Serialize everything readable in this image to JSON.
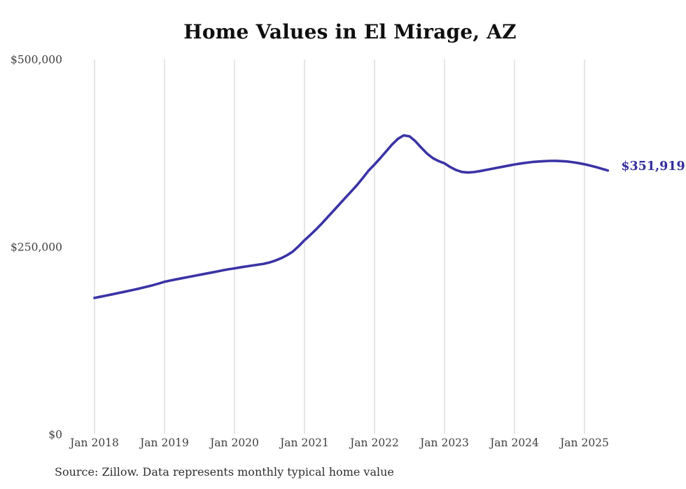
{
  "chart": {
    "title": "Home Values in El Mirage, AZ",
    "source_note": "Source: Zillow. Data represents monthly typical home value",
    "end_label": "$351,919",
    "colors": {
      "line": "#3a33a5",
      "end_label": "#332d9e",
      "grid": "#cccccc",
      "tick_text": "#404040",
      "title_text": "#0f0f0f"
    }
  },
  "chart_data": {
    "type": "line",
    "title": "Home Values in El Mirage, AZ",
    "xlabel": "",
    "ylabel": "",
    "ylim": [
      0,
      500000
    ],
    "grid": "vertical-only",
    "legend": "none",
    "y_ticks": [
      {
        "value": 0,
        "label": "$0"
      },
      {
        "value": 250000,
        "label": "$250,000"
      },
      {
        "value": 500000,
        "label": "$500,000"
      }
    ],
    "x_tick_labels": [
      "Jan 2018",
      "Jan 2019",
      "Jan 2020",
      "Jan 2021",
      "Jan 2022",
      "Jan 2023",
      "Jan 2024",
      "Jan 2025"
    ],
    "annotations": [
      {
        "text": "$351,919",
        "attached_to": "last-point"
      }
    ],
    "series": [
      {
        "name": "Monthly typical home value",
        "dates": [
          "2018-01",
          "2018-02",
          "2018-03",
          "2018-04",
          "2018-05",
          "2018-06",
          "2018-07",
          "2018-08",
          "2018-09",
          "2018-10",
          "2018-11",
          "2018-12",
          "2019-01",
          "2019-02",
          "2019-03",
          "2019-04",
          "2019-05",
          "2019-06",
          "2019-07",
          "2019-08",
          "2019-09",
          "2019-10",
          "2019-11",
          "2019-12",
          "2020-01",
          "2020-02",
          "2020-03",
          "2020-04",
          "2020-05",
          "2020-06",
          "2020-07",
          "2020-08",
          "2020-09",
          "2020-10",
          "2020-11",
          "2020-12",
          "2021-01",
          "2021-02",
          "2021-03",
          "2021-04",
          "2021-05",
          "2021-06",
          "2021-07",
          "2021-08",
          "2021-09",
          "2021-10",
          "2021-11",
          "2021-12",
          "2022-01",
          "2022-02",
          "2022-03",
          "2022-04",
          "2022-05",
          "2022-06",
          "2022-07",
          "2022-08",
          "2022-09",
          "2022-10",
          "2022-11",
          "2022-12",
          "2023-01",
          "2023-02",
          "2023-03",
          "2023-04",
          "2023-05",
          "2023-06",
          "2023-07",
          "2023-08",
          "2023-09",
          "2023-10",
          "2023-11",
          "2023-12",
          "2024-01",
          "2024-02",
          "2024-03",
          "2024-04",
          "2024-05",
          "2024-06",
          "2024-07",
          "2024-08",
          "2024-09",
          "2024-10",
          "2024-11",
          "2024-12",
          "2025-01",
          "2025-02",
          "2025-03",
          "2025-04",
          "2025-05"
        ],
        "values": [
          182000,
          183600,
          185200,
          186800,
          188400,
          190000,
          191700,
          193400,
          195200,
          197000,
          199000,
          201200,
          203500,
          205200,
          206800,
          208300,
          209800,
          211300,
          212800,
          214300,
          215800,
          217300,
          218800,
          220200,
          221500,
          222800,
          224000,
          225200,
          226300,
          227500,
          229300,
          231800,
          235000,
          239000,
          243800,
          251000,
          259000,
          266000,
          273500,
          281500,
          290000,
          298500,
          307000,
          315500,
          324000,
          332500,
          342000,
          352000,
          360000,
          368500,
          377500,
          386500,
          394000,
          398800,
          397500,
          391000,
          382500,
          374500,
          368500,
          364500,
          361500,
          356500,
          352500,
          350000,
          349300,
          349800,
          351000,
          352500,
          354000,
          355500,
          357000,
          358500,
          360000,
          361200,
          362300,
          363200,
          363900,
          364400,
          364700,
          364800,
          364500,
          364000,
          363000,
          361800,
          360300,
          358500,
          356400,
          354200,
          351919
        ]
      }
    ]
  }
}
